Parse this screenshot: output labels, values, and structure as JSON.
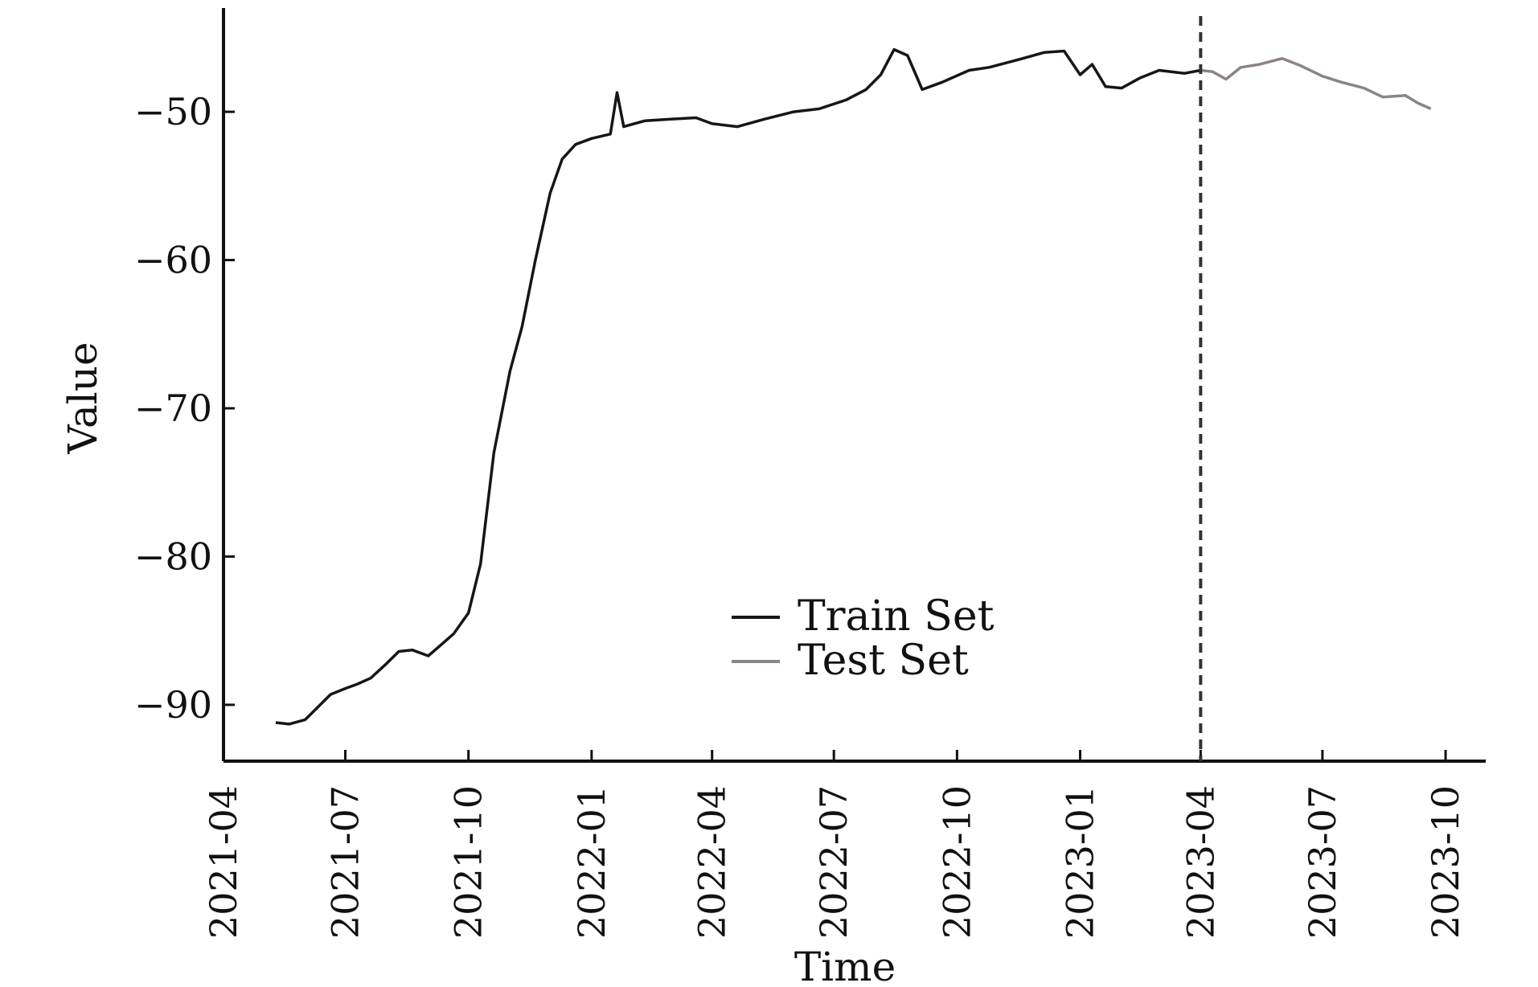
{
  "chart_data": {
    "type": "line",
    "xlabel": "Time",
    "ylabel": "Value",
    "x_ticks": [
      "2021-04",
      "2021-07",
      "2021-10",
      "2022-01",
      "2022-04",
      "2022-07",
      "2022-10",
      "2023-01",
      "2023-04",
      "2023-07",
      "2023-10"
    ],
    "y_ticks": [
      "-90",
      "-80",
      "-70",
      "-60",
      "-50"
    ],
    "y_tick_values": [
      -90,
      -80,
      -70,
      -60,
      -50
    ],
    "xlim": [
      "2021-04-01",
      "2023-10-31"
    ],
    "ylim": [
      -93.8,
      -43
    ],
    "grid": false,
    "legend_position": "center-bottom",
    "split_date": "2023-04-01",
    "series": [
      {
        "name": "Train Set",
        "color": "#1a1414",
        "points": [
          [
            "2021-05-10",
            -91.2
          ],
          [
            "2021-05-20",
            -91.3
          ],
          [
            "2021-06-01",
            -91.0
          ],
          [
            "2021-06-10",
            -90.2
          ],
          [
            "2021-06-20",
            -89.3
          ],
          [
            "2021-07-01",
            -88.9
          ],
          [
            "2021-07-10",
            -88.6
          ],
          [
            "2021-07-20",
            -88.2
          ],
          [
            "2021-08-01",
            -87.2
          ],
          [
            "2021-08-10",
            -86.4
          ],
          [
            "2021-08-20",
            -86.3
          ],
          [
            "2021-09-01",
            -86.7
          ],
          [
            "2021-09-10",
            -86.0
          ],
          [
            "2021-09-20",
            -85.2
          ],
          [
            "2021-10-01",
            -83.8
          ],
          [
            "2021-10-10",
            -80.5
          ],
          [
            "2021-10-20",
            -73.0
          ],
          [
            "2021-11-01",
            -67.5
          ],
          [
            "2021-11-10",
            -64.5
          ],
          [
            "2021-11-20",
            -60.0
          ],
          [
            "2021-12-01",
            -55.5
          ],
          [
            "2021-12-10",
            -53.2
          ],
          [
            "2021-12-20",
            -52.2
          ],
          [
            "2022-01-01",
            -51.8
          ],
          [
            "2022-01-15",
            -51.5
          ],
          [
            "2022-01-20",
            -48.7
          ],
          [
            "2022-01-25",
            -51.0
          ],
          [
            "2022-02-10",
            -50.6
          ],
          [
            "2022-03-01",
            -50.5
          ],
          [
            "2022-03-20",
            -50.4
          ],
          [
            "2022-04-01",
            -50.8
          ],
          [
            "2022-04-20",
            -51.0
          ],
          [
            "2022-05-10",
            -50.5
          ],
          [
            "2022-06-01",
            -50.0
          ],
          [
            "2022-06-20",
            -49.8
          ],
          [
            "2022-07-10",
            -49.2
          ],
          [
            "2022-07-25",
            -48.5
          ],
          [
            "2022-08-05",
            -47.5
          ],
          [
            "2022-08-15",
            -45.8
          ],
          [
            "2022-08-25",
            -46.2
          ],
          [
            "2022-09-05",
            -48.5
          ],
          [
            "2022-09-20",
            -48.0
          ],
          [
            "2022-10-10",
            -47.2
          ],
          [
            "2022-10-25",
            -47.0
          ],
          [
            "2022-11-15",
            -46.5
          ],
          [
            "2022-12-05",
            -46.0
          ],
          [
            "2022-12-20",
            -45.9
          ],
          [
            "2023-01-01",
            -47.5
          ],
          [
            "2023-01-10",
            -46.8
          ],
          [
            "2023-01-20",
            -48.3
          ],
          [
            "2023-02-01",
            -48.4
          ],
          [
            "2023-02-15",
            -47.7
          ],
          [
            "2023-03-01",
            -47.2
          ],
          [
            "2023-03-20",
            -47.4
          ],
          [
            "2023-04-01",
            -47.2
          ]
        ]
      },
      {
        "name": "Test Set",
        "color": "#8c8484",
        "points": [
          [
            "2023-04-01",
            -47.2
          ],
          [
            "2023-04-10",
            -47.3
          ],
          [
            "2023-04-20",
            -47.8
          ],
          [
            "2023-05-01",
            -47.0
          ],
          [
            "2023-05-15",
            -46.8
          ],
          [
            "2023-06-01",
            -46.4
          ],
          [
            "2023-06-15",
            -46.9
          ],
          [
            "2023-07-01",
            -47.6
          ],
          [
            "2023-07-15",
            -48.0
          ],
          [
            "2023-08-01",
            -48.4
          ],
          [
            "2023-08-15",
            -49.0
          ],
          [
            "2023-09-01",
            -48.9
          ],
          [
            "2023-09-10",
            -49.4
          ],
          [
            "2023-09-20",
            -49.8
          ]
        ]
      }
    ]
  }
}
